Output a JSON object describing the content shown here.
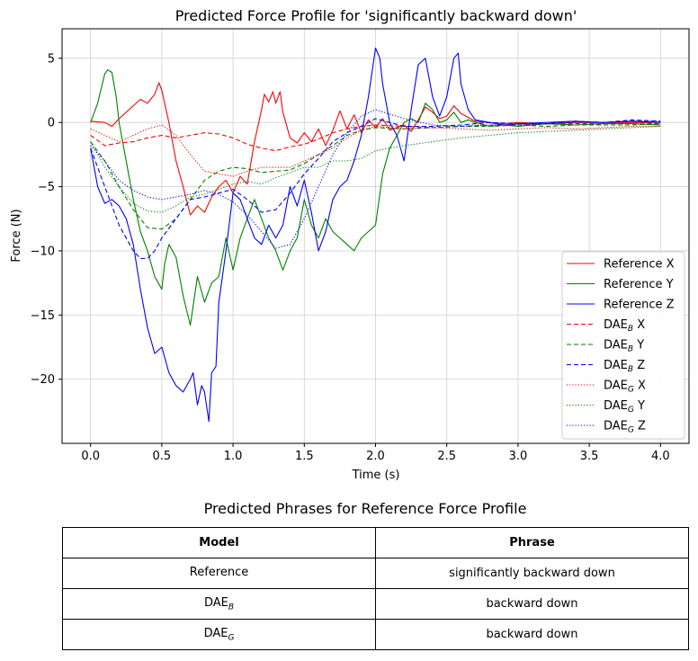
{
  "chart_data": {
    "type": "line",
    "title": "Predicted Force Profile for 'significantly backward down'",
    "xlabel": "Time (s)",
    "ylabel": "Force (N)",
    "xlim": [
      -0.2,
      4.2
    ],
    "ylim": [
      -25,
      7.3
    ],
    "xticks": [
      0.0,
      0.5,
      1.0,
      1.5,
      2.0,
      2.5,
      3.0,
      3.5,
      4.0
    ],
    "xtick_labels": [
      "0.0",
      "0.5",
      "1.0",
      "1.5",
      "2.0",
      "2.5",
      "3.0",
      "3.5",
      "4.0"
    ],
    "yticks": [
      -20,
      -15,
      -10,
      -5,
      0,
      5
    ],
    "ytick_labels": [
      "−20",
      "−15",
      "−10",
      "−5",
      "0",
      "5"
    ],
    "grid": true,
    "legend_position": "lower-right",
    "series": [
      {
        "name": "Reference X",
        "base": "Reference X",
        "sub": "",
        "color": "#ff0000",
        "dash": "solid",
        "x": [
          0.0,
          0.1,
          0.15,
          0.2,
          0.3,
          0.35,
          0.4,
          0.45,
          0.48,
          0.5,
          0.55,
          0.6,
          0.65,
          0.7,
          0.75,
          0.8,
          0.85,
          0.9,
          0.95,
          1.0,
          1.05,
          1.1,
          1.15,
          1.2,
          1.22,
          1.25,
          1.28,
          1.3,
          1.33,
          1.35,
          1.4,
          1.45,
          1.5,
          1.55,
          1.6,
          1.65,
          1.7,
          1.75,
          1.8,
          1.85,
          1.9,
          1.95,
          2.0,
          2.05,
          2.1,
          2.15,
          2.2,
          2.25,
          2.3,
          2.35,
          2.4,
          2.45,
          2.5,
          2.55,
          2.6,
          2.65,
          2.7,
          2.8,
          2.9,
          3.0,
          3.2,
          3.4,
          3.6,
          3.8,
          4.0
        ],
        "y": [
          0.1,
          0.0,
          -0.3,
          0.3,
          1.3,
          1.8,
          1.5,
          2.2,
          3.1,
          2.5,
          0.0,
          -3.0,
          -5.0,
          -7.2,
          -6.5,
          -7.0,
          -5.8,
          -5.0,
          -4.5,
          -5.5,
          -4.2,
          -4.8,
          -1.5,
          1.0,
          2.2,
          1.6,
          2.4,
          1.5,
          2.4,
          0.8,
          -1.2,
          -1.6,
          -0.8,
          -1.5,
          -0.5,
          -1.8,
          -0.6,
          0.9,
          -0.5,
          0.6,
          -0.8,
          0.2,
          -0.4,
          0.3,
          -0.6,
          -0.4,
          -0.2,
          -0.7,
          0.2,
          1.2,
          0.8,
          0.3,
          0.5,
          1.3,
          0.7,
          0.4,
          0.1,
          0.0,
          -0.1,
          0.0,
          -0.1,
          0.0,
          0.0,
          0.0,
          0.0
        ]
      },
      {
        "name": "Reference Y",
        "base": "Reference Y",
        "sub": "",
        "color": "#008000",
        "dash": "solid",
        "x": [
          0.0,
          0.05,
          0.1,
          0.12,
          0.15,
          0.18,
          0.2,
          0.25,
          0.3,
          0.35,
          0.4,
          0.45,
          0.5,
          0.52,
          0.55,
          0.6,
          0.65,
          0.7,
          0.75,
          0.8,
          0.85,
          0.9,
          0.95,
          1.0,
          1.05,
          1.1,
          1.15,
          1.2,
          1.25,
          1.3,
          1.35,
          1.4,
          1.45,
          1.5,
          1.55,
          1.6,
          1.65,
          1.7,
          1.75,
          1.8,
          1.85,
          1.9,
          1.95,
          2.0,
          2.05,
          2.1,
          2.15,
          2.2,
          2.25,
          2.3,
          2.35,
          2.4,
          2.45,
          2.5,
          2.55,
          2.6,
          2.65,
          2.7,
          2.8,
          2.9,
          3.0,
          3.2,
          3.4,
          3.6,
          3.8,
          4.0
        ],
        "y": [
          0.0,
          1.5,
          3.8,
          4.1,
          3.9,
          2.0,
          0.0,
          -3.0,
          -6.0,
          -8.5,
          -10.0,
          -12.0,
          -13.0,
          -11.0,
          -9.5,
          -10.5,
          -13.5,
          -15.8,
          -12.0,
          -14.0,
          -12.5,
          -12.0,
          -9.0,
          -11.5,
          -9.0,
          -7.5,
          -6.0,
          -7.5,
          -9.0,
          -10.0,
          -11.5,
          -10.0,
          -9.0,
          -6.0,
          -8.0,
          -9.0,
          -7.5,
          -8.5,
          -9.0,
          -9.5,
          -10.0,
          -9.0,
          -8.5,
          -8.0,
          -4.0,
          -2.0,
          -1.0,
          0.0,
          0.3,
          0.0,
          1.5,
          1.0,
          0.0,
          0.2,
          0.8,
          0.0,
          0.2,
          0.0,
          -0.3,
          -0.2,
          -0.3,
          -0.1,
          -0.2,
          -0.1,
          -0.1,
          -0.2
        ]
      },
      {
        "name": "Reference Z",
        "base": "Reference Z",
        "sub": "",
        "color": "#0000ff",
        "dash": "solid",
        "x": [
          0.0,
          0.05,
          0.1,
          0.15,
          0.2,
          0.25,
          0.3,
          0.35,
          0.4,
          0.45,
          0.5,
          0.55,
          0.6,
          0.65,
          0.7,
          0.72,
          0.75,
          0.78,
          0.8,
          0.83,
          0.85,
          0.88,
          0.9,
          0.95,
          1.0,
          1.05,
          1.1,
          1.15,
          1.2,
          1.25,
          1.3,
          1.35,
          1.4,
          1.45,
          1.5,
          1.55,
          1.6,
          1.65,
          1.7,
          1.75,
          1.8,
          1.85,
          1.9,
          1.95,
          2.0,
          2.03,
          2.05,
          2.1,
          2.15,
          2.2,
          2.25,
          2.3,
          2.35,
          2.4,
          2.45,
          2.5,
          2.55,
          2.58,
          2.6,
          2.65,
          2.7,
          2.8,
          2.9,
          3.0,
          3.2,
          3.4,
          3.6,
          3.8,
          4.0
        ],
        "y": [
          -2.0,
          -5.0,
          -6.3,
          -6.0,
          -6.5,
          -7.5,
          -9.5,
          -13.0,
          -16.0,
          -18.0,
          -17.5,
          -19.5,
          -20.5,
          -21.0,
          -20.0,
          -19.5,
          -22.0,
          -20.5,
          -21.0,
          -23.3,
          -19.5,
          -19.0,
          -14.0,
          -10.0,
          -5.5,
          -6.0,
          -7.5,
          -9.0,
          -9.5,
          -8.0,
          -9.0,
          -8.0,
          -5.0,
          -6.5,
          -4.5,
          -7.0,
          -10.0,
          -8.5,
          -6.0,
          -5.0,
          -4.5,
          -3.0,
          -1.0,
          2.0,
          5.8,
          5.0,
          3.0,
          0.0,
          -1.0,
          -3.0,
          1.0,
          4.5,
          5.0,
          2.0,
          0.5,
          2.0,
          5.0,
          5.4,
          3.0,
          1.0,
          0.2,
          0.0,
          -0.2,
          -0.1,
          0.0,
          0.1,
          0.0,
          0.1,
          0.0
        ]
      },
      {
        "name": "DAE_B X",
        "base": "DAE",
        "sub": "B",
        "suffix": " X",
        "color": "#ff0000",
        "dash": "dashed",
        "x": [
          0.0,
          0.1,
          0.2,
          0.3,
          0.4,
          0.5,
          0.6,
          0.7,
          0.8,
          0.9,
          1.0,
          1.1,
          1.2,
          1.3,
          1.4,
          1.5,
          1.6,
          1.7,
          1.8,
          1.9,
          2.0,
          2.2,
          2.4,
          2.6,
          2.8,
          3.0,
          3.2,
          3.4,
          3.6,
          3.8,
          4.0
        ],
        "y": [
          -1.0,
          -1.8,
          -1.6,
          -1.5,
          -1.2,
          -1.0,
          -1.2,
          -1.0,
          -0.8,
          -0.9,
          -1.2,
          -1.7,
          -2.0,
          -2.2,
          -1.9,
          -1.7,
          -1.3,
          -0.8,
          -0.5,
          -0.3,
          -0.2,
          -0.3,
          -0.4,
          -0.3,
          -0.2,
          -0.2,
          -0.1,
          -0.1,
          -0.1,
          0.0,
          -0.1
        ]
      },
      {
        "name": "DAE_B Y",
        "base": "DAE",
        "sub": "B",
        "suffix": " Y",
        "color": "#008000",
        "dash": "dashed",
        "x": [
          0.0,
          0.1,
          0.2,
          0.3,
          0.4,
          0.5,
          0.6,
          0.7,
          0.8,
          0.9,
          1.0,
          1.1,
          1.2,
          1.3,
          1.4,
          1.5,
          1.6,
          1.7,
          1.8,
          1.9,
          2.0,
          2.2,
          2.4,
          2.6,
          2.8,
          3.0,
          3.2,
          3.4,
          3.6,
          3.8,
          4.0
        ],
        "y": [
          -1.5,
          -3.0,
          -5.0,
          -6.8,
          -8.2,
          -8.3,
          -7.5,
          -6.0,
          -4.5,
          -3.8,
          -3.5,
          -3.6,
          -3.9,
          -3.8,
          -3.7,
          -3.2,
          -2.5,
          -1.8,
          -1.0,
          -0.6,
          -0.4,
          -0.5,
          -0.4,
          -0.3,
          -0.3,
          -0.2,
          -0.3,
          -0.2,
          -0.2,
          -0.2,
          -0.1
        ]
      },
      {
        "name": "DAE_B Z",
        "base": "DAE",
        "sub": "B",
        "suffix": " Z",
        "color": "#0000ff",
        "dash": "dashed",
        "x": [
          0.0,
          0.1,
          0.2,
          0.3,
          0.35,
          0.4,
          0.45,
          0.5,
          0.6,
          0.7,
          0.8,
          0.9,
          1.0,
          1.1,
          1.2,
          1.3,
          1.4,
          1.5,
          1.6,
          1.7,
          1.8,
          1.9,
          2.0,
          2.2,
          2.4,
          2.6,
          2.8,
          3.0,
          3.2,
          3.4,
          3.6,
          3.8,
          4.0
        ],
        "y": [
          -2.0,
          -5.0,
          -8.0,
          -10.0,
          -10.6,
          -10.6,
          -10.0,
          -9.0,
          -7.5,
          -6.0,
          -5.8,
          -5.5,
          -5.2,
          -6.0,
          -7.0,
          -6.8,
          -5.5,
          -4.0,
          -2.8,
          -1.5,
          -0.8,
          -0.3,
          0.3,
          -0.3,
          -0.3,
          -0.2,
          0.0,
          -0.1,
          -0.1,
          0.1,
          0.0,
          0.2,
          0.1
        ]
      },
      {
        "name": "DAE_G X",
        "base": "DAE",
        "sub": "G",
        "suffix": " X",
        "color": "#ff0000",
        "dash": "dotted",
        "x": [
          0.0,
          0.1,
          0.2,
          0.3,
          0.4,
          0.5,
          0.6,
          0.7,
          0.8,
          0.9,
          1.0,
          1.1,
          1.2,
          1.3,
          1.4,
          1.5,
          1.6,
          1.7,
          1.8,
          1.9,
          2.0,
          2.2,
          2.4,
          2.6,
          2.8,
          3.0,
          3.2,
          3.4,
          3.6,
          3.8,
          4.0
        ],
        "y": [
          -0.5,
          -1.0,
          -1.5,
          -1.0,
          -0.5,
          -0.2,
          -1.0,
          -2.5,
          -3.8,
          -4.0,
          -4.2,
          -3.8,
          -3.5,
          -3.5,
          -3.5,
          -3.0,
          -2.5,
          -2.0,
          -1.2,
          -0.6,
          -0.3,
          -0.5,
          -0.4,
          -0.5,
          -0.6,
          -0.5,
          -0.4,
          -0.5,
          -0.4,
          -0.3,
          -0.3
        ]
      },
      {
        "name": "DAE_G Y",
        "base": "DAE",
        "sub": "G",
        "suffix": " Y",
        "color": "#008000",
        "dash": "dotted",
        "x": [
          0.0,
          0.1,
          0.2,
          0.3,
          0.4,
          0.5,
          0.6,
          0.7,
          0.8,
          0.9,
          1.0,
          1.1,
          1.2,
          1.3,
          1.4,
          1.5,
          1.6,
          1.7,
          1.8,
          1.9,
          2.0,
          2.2,
          2.4,
          2.6,
          2.8,
          3.0,
          3.2,
          3.4,
          3.6,
          3.8,
          4.0
        ],
        "y": [
          -1.5,
          -3.5,
          -5.0,
          -6.3,
          -6.9,
          -7.0,
          -6.5,
          -5.8,
          -5.6,
          -5.2,
          -4.8,
          -4.6,
          -4.8,
          -4.3,
          -3.9,
          -3.5,
          -3.5,
          -3.0,
          -3.0,
          -2.8,
          -2.2,
          -1.8,
          -1.5,
          -1.2,
          -1.0,
          -0.8,
          -0.7,
          -0.6,
          -0.5,
          -0.4,
          -0.3
        ]
      },
      {
        "name": "DAE_G Z",
        "base": "DAE",
        "sub": "G",
        "suffix": " Z",
        "color": "#0000ff",
        "dash": "dotted",
        "x": [
          0.0,
          0.1,
          0.2,
          0.3,
          0.4,
          0.5,
          0.6,
          0.7,
          0.8,
          0.9,
          1.0,
          1.1,
          1.2,
          1.3,
          1.4,
          1.5,
          1.6,
          1.7,
          1.8,
          1.9,
          2.0,
          2.2,
          2.4,
          2.6,
          2.8,
          3.0,
          3.2,
          3.4,
          3.6,
          3.8,
          4.0
        ],
        "y": [
          -1.8,
          -3.0,
          -4.5,
          -5.3,
          -5.8,
          -6.0,
          -5.8,
          -5.6,
          -5.3,
          -5.6,
          -6.2,
          -7.2,
          -8.5,
          -9.8,
          -9.5,
          -7.5,
          -5.0,
          -2.5,
          -0.8,
          0.5,
          1.0,
          0.3,
          -0.2,
          -0.3,
          -0.2,
          -0.2,
          -0.1,
          0.0,
          0.0,
          0.1,
          0.1
        ]
      }
    ]
  },
  "table": {
    "title": "Predicted Phrases for Reference Force Profile",
    "header_model": "Model",
    "header_phrase": "Phrase",
    "rows": [
      {
        "model": "Reference",
        "model_base": "Reference",
        "model_sub": "",
        "phrase": "significantly backward down"
      },
      {
        "model": "DAE_B",
        "model_base": "DAE",
        "model_sub": "B",
        "phrase": "backward down"
      },
      {
        "model": "DAE_G",
        "model_base": "DAE",
        "model_sub": "G",
        "phrase": "backward down"
      }
    ]
  }
}
